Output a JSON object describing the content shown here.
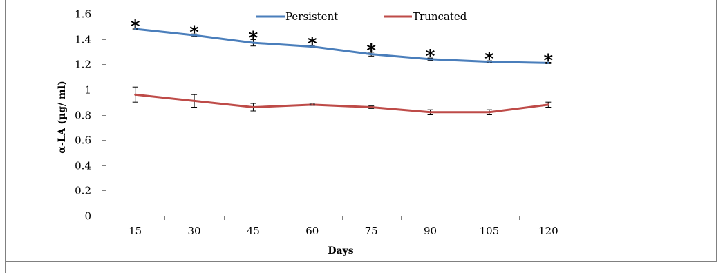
{
  "chart_data": {
    "type": "line",
    "x": [
      15,
      30,
      45,
      60,
      75,
      90,
      105,
      120
    ],
    "categories": [
      "15",
      "30",
      "45",
      "60",
      "75",
      "90",
      "105",
      "120"
    ],
    "xlabel": "Days",
    "ylabel": "α-LA (µg/ ml)",
    "ylim": [
      0,
      1.6
    ],
    "yticks": [
      0,
      0.2,
      0.4,
      0.6,
      0.8,
      1,
      1.2,
      1.4,
      1.6
    ],
    "ytick_labels": [
      "0",
      "0.2",
      "0.4",
      "0.6",
      "0.8",
      "1",
      "1.2",
      "1.4",
      "1.6"
    ],
    "grid": false,
    "legend_position": "top",
    "series": [
      {
        "name": "Persistent",
        "color": "#4a7ebb",
        "values": [
          1.48,
          1.43,
          1.37,
          1.34,
          1.28,
          1.24,
          1.22,
          1.21
        ],
        "errors": [
          0.005,
          0.01,
          0.025,
          0.01,
          0.015,
          0.01,
          0.008,
          0.005
        ]
      },
      {
        "name": "Truncated",
        "color": "#be4b48",
        "values": [
          0.96,
          0.91,
          0.86,
          0.88,
          0.86,
          0.82,
          0.82,
          0.88
        ],
        "errors": [
          0.06,
          0.05,
          0.03,
          0.005,
          0.01,
          0.02,
          0.02,
          0.02
        ]
      }
    ],
    "annotations": [
      "*",
      "*",
      "*",
      "*",
      "*",
      "*",
      "*",
      "*"
    ]
  }
}
